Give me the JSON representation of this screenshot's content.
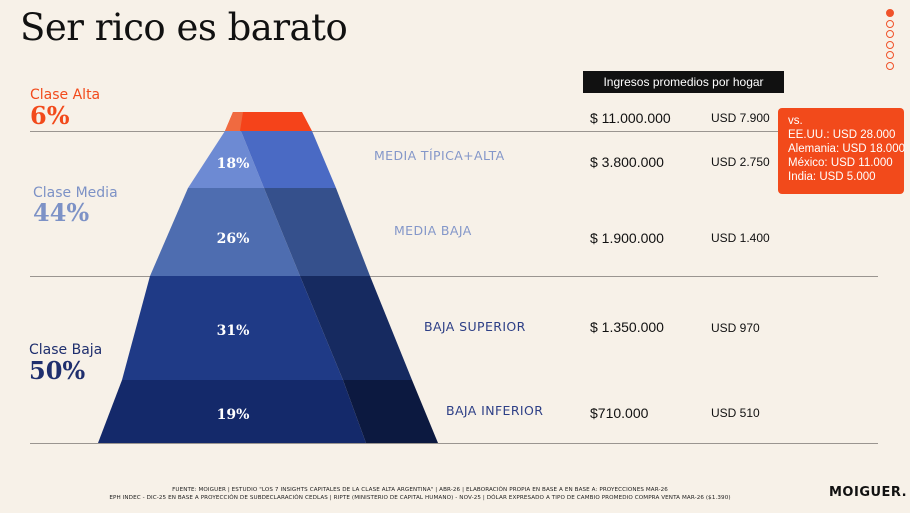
{
  "title": "Ser rico es barato",
  "pagination": {
    "total": 6,
    "active": 1
  },
  "classes": {
    "alta": {
      "label": "Clase Alta",
      "pct": "6%"
    },
    "media": {
      "label": "Clase Media",
      "pct": "44%"
    },
    "baja": {
      "label": "Clase Baja",
      "pct": "50%"
    }
  },
  "header": "Ingresos promedios por hogar",
  "segments": [
    {
      "name": "",
      "pct": "",
      "ars": "$ 11.000.000",
      "usd": "USD 7.900"
    },
    {
      "name": "MEDIA TÍPICA+ALTA",
      "pct": "18%",
      "ars": "$ 3.800.000",
      "usd": "USD 2.750"
    },
    {
      "name": "MEDIA BAJA",
      "pct": "26%",
      "ars": "$ 1.900.000",
      "usd": "USD 1.400"
    },
    {
      "name": "BAJA SUPERIOR",
      "pct": "31%",
      "ars": "$ 1.350.000",
      "usd": "USD 970"
    },
    {
      "name": "BAJA INFERIOR",
      "pct": "19%",
      "ars": "$710.000",
      "usd": "USD 510"
    }
  ],
  "callout": {
    "heading": "vs.",
    "lines": [
      "EE.UU.: USD 28.000",
      "Alemania: USD 18.000",
      "México: USD 11.000",
      "India: USD 5.000"
    ]
  },
  "footer": {
    "line1": "FUENTE:  MOIGUER | ESTUDIO \"LOS 7 INSIGHTS CAPITALES DE LA CLASE ALTA ARGENTINA\" | ABR-26 | ELABORACIÓN PROPIA EN BASE A EN BASE A: PROYECCIONES MAR-26",
    "line2": "EPH INDEC - DIC-25 EN BASE A PROYECCIÓN DE SUBDECLARACIÓN CEDLAS | RIPTE (MINISTERIO DE CAPITAL HUMANO) - NOV-25 | DÓLAR EXPRESADO A TIPO DE CAMBIO PROMEDIO COMPRA VENTA MAR-26 ($1.390)"
  },
  "brand": "MOIGUER.",
  "colors": {
    "accent": "#f24a1b",
    "alta": "#f24a1b",
    "media_label": "#7d92c6",
    "baja_label": "#1f2f6e",
    "header_bg": "#111111"
  }
}
